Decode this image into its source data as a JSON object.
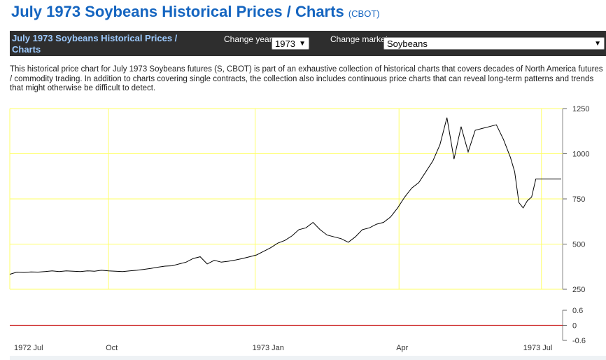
{
  "header": {
    "title": "July 1973 Soybeans Historical Prices / Charts",
    "exchange": "(CBOT)"
  },
  "navbar": {
    "title": "July 1973 Soybeans Historical Prices / Charts",
    "year_label": "Change year:",
    "year_value": "1973",
    "market_label": "Change market:",
    "market_value": "Soybeans"
  },
  "description": "This historical price chart for July 1973 Soybeans futures (S, CBOT) is part of an exhaustive collection of historical charts that covers decades of North America futures / commodity trading. In addition to charts covering single contracts, the collection also includes continuous price charts that can reveal long-term patterns and trends that might otherwise be difficult to detect.",
  "colors": {
    "grid": "#ffff66",
    "price_line": "#000000",
    "indicator_line": "#cc2222",
    "title_blue": "#1565c0"
  },
  "chart_data": [
    {
      "type": "line",
      "title": "",
      "xlabel": "",
      "ylabel": "",
      "ylim": [
        250,
        1250
      ],
      "yticks": [
        250,
        500,
        750,
        1000,
        1250
      ],
      "x_range": [
        0,
        392
      ],
      "x_ticks": [
        {
          "x": 0,
          "label": "1972 Jul"
        },
        {
          "x": 70,
          "label": "Oct"
        },
        {
          "x": 174,
          "label": "1973 Jan"
        },
        {
          "x": 276,
          "label": "Apr"
        },
        {
          "x": 377,
          "label": "1973 Jul"
        }
      ],
      "grid": true,
      "series": [
        {
          "name": "July 1973 Soybeans",
          "x": [
            0,
            5,
            10,
            15,
            20,
            25,
            30,
            35,
            40,
            45,
            50,
            55,
            60,
            65,
            70,
            75,
            80,
            85,
            90,
            95,
            100,
            105,
            110,
            115,
            120,
            125,
            130,
            135,
            140,
            145,
            150,
            155,
            160,
            165,
            170,
            175,
            180,
            185,
            190,
            195,
            200,
            205,
            210,
            215,
            220,
            225,
            230,
            235,
            240,
            245,
            250,
            255,
            260,
            265,
            270,
            275,
            280,
            285,
            290,
            295,
            300,
            305,
            310,
            315,
            320,
            325,
            330,
            335,
            340,
            345,
            350,
            355,
            358,
            361,
            364,
            367,
            370,
            373,
            376,
            379,
            382,
            385,
            388,
            391
          ],
          "values": [
            333,
            345,
            343,
            346,
            345,
            348,
            352,
            348,
            352,
            350,
            348,
            352,
            350,
            355,
            352,
            350,
            348,
            352,
            355,
            360,
            365,
            372,
            378,
            380,
            390,
            400,
            420,
            430,
            390,
            410,
            400,
            405,
            412,
            420,
            430,
            440,
            460,
            480,
            505,
            520,
            545,
            580,
            590,
            620,
            580,
            550,
            540,
            530,
            510,
            540,
            580,
            590,
            610,
            620,
            650,
            700,
            760,
            810,
            840,
            900,
            960,
            1050,
            1200,
            970,
            1150,
            1010,
            1130,
            1140,
            1150,
            1160,
            1080,
            980,
            900,
            730,
            700,
            740,
            760,
            860,
            860,
            860,
            860,
            860,
            860,
            860
          ]
        }
      ]
    },
    {
      "type": "line",
      "title": "",
      "ylim": [
        -0.6,
        0.6
      ],
      "yticks": [
        "0.6",
        "0",
        "-0.6"
      ],
      "series": [
        {
          "name": "indicator",
          "values": [
            0,
            0
          ]
        }
      ]
    }
  ]
}
